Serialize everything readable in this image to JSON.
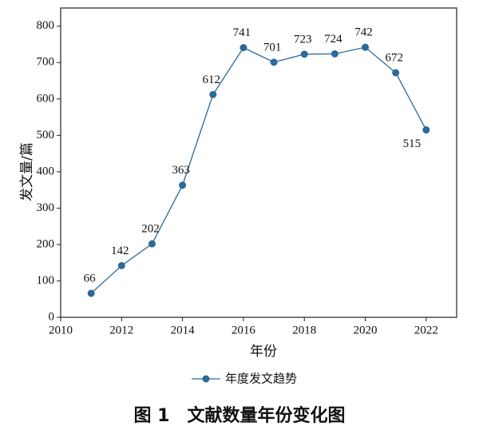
{
  "chart_data": {
    "type": "line",
    "title": "图 1　文献数量年份变化图",
    "x_label": "年份",
    "y_label": "发文量/篇",
    "x": [
      2011,
      2012,
      2013,
      2014,
      2015,
      2016,
      2017,
      2018,
      2019,
      2020,
      2021,
      2022
    ],
    "series": [
      {
        "name": "年度发文趋势",
        "color": "#2b6a99",
        "values": [
          66,
          142,
          202,
          363,
          612,
          741,
          701,
          723,
          724,
          742,
          672,
          515
        ]
      }
    ],
    "xlim": [
      2010,
      2023
    ],
    "xticks": [
      2010,
      2012,
      2014,
      2016,
      2018,
      2020,
      2022
    ],
    "ylim": [
      0,
      850
    ],
    "yticks": [
      0,
      100,
      200,
      300,
      400,
      500,
      600,
      700,
      800
    ],
    "legend": "bottom"
  }
}
